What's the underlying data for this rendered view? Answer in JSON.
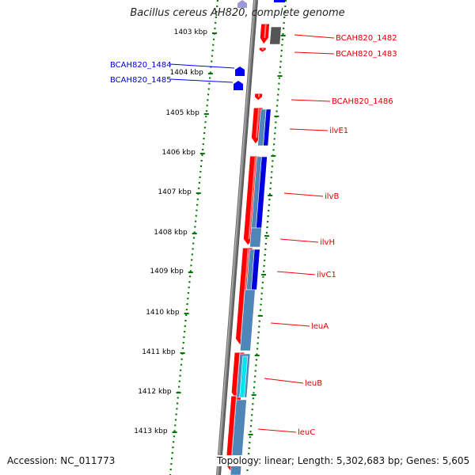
{
  "title": "Bacillus cereus AH820, complete genome",
  "footer": {
    "accession": "Accession: NC_011773",
    "topology": "Topology: linear",
    "length": "Length: 5,302,683 bp",
    "genes": "Genes: 5,605"
  },
  "colors": {
    "forward_gene": "#ff0000",
    "reverse_gene": "#0000ff",
    "backbone": "#808080",
    "tick": "#007700",
    "cds_blue": "#0000dd",
    "steel": "#4f86b8",
    "cyan": "#00e5ee",
    "dark_gray": "#555555"
  },
  "kbp_ticks": [
    "1403 kbp",
    "1404 kbp",
    "1405 kbp",
    "1406 kbp",
    "1407 kbp",
    "1408 kbp",
    "1409 kbp",
    "1410 kbp",
    "1411 kbp",
    "1412 kbp",
    "1413 kbp"
  ],
  "right_gene_labels": [
    "BCAH820_1482",
    "BCAH820_1483",
    "BCAH820_1486",
    "ilvE1",
    "ilvB",
    "ilvH",
    "ilvC1",
    "leuA",
    "leuB",
    "leuC"
  ],
  "left_gene_labels": [
    "BCAH820_1484",
    "BCAH820_1485"
  ]
}
